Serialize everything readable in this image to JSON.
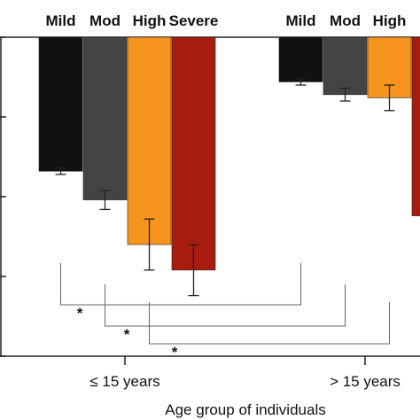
{
  "chart_data": {
    "type": "bar",
    "title": "",
    "xlabel": "Age group of individuals",
    "ylabel": "",
    "ylim": [
      0,
      1
    ],
    "y_ticks": [
      0,
      0.25,
      0.5,
      0.75,
      1
    ],
    "y_tick_labels": [
      "",
      "",
      "",
      "",
      ""
    ],
    "inverted": true,
    "groups": [
      "≤ 15 years",
      "> 15 years"
    ],
    "series": [
      {
        "name": "Mild",
        "color": "#111111",
        "values": [
          0.42,
          0.14
        ],
        "errors": [
          0.01,
          0.01
        ]
      },
      {
        "name": "Mod",
        "color": "#444444",
        "values": [
          0.51,
          0.18
        ],
        "errors": [
          0.03,
          0.02
        ]
      },
      {
        "name": "High",
        "color": "#f7941d",
        "values": [
          0.65,
          0.19
        ],
        "errors": [
          0.08,
          0.04
        ]
      },
      {
        "name": "Severe",
        "color": "#a81c10",
        "values": [
          0.73,
          0.56
        ],
        "errors": [
          0.08,
          0.0
        ]
      }
    ],
    "category_labels": [
      {
        "group": 0,
        "series": 0,
        "text": "Mild"
      },
      {
        "group": 0,
        "series": 1,
        "text": "Mod"
      },
      {
        "group": 0,
        "series": 2,
        "text": "High"
      },
      {
        "group": 0,
        "series": 3,
        "text": "Severe"
      },
      {
        "group": 1,
        "series": 0,
        "text": "Mild"
      },
      {
        "group": 1,
        "series": 1,
        "text": "Mod"
      },
      {
        "group": 1,
        "series": 2,
        "text": "High"
      },
      {
        "group": 1,
        "series": 3,
        "text": "S"
      }
    ],
    "significance": [
      {
        "from_series": 0,
        "to_series": 0,
        "label": "*"
      },
      {
        "from_series": 1,
        "to_series": 1,
        "label": "*"
      },
      {
        "from_series": 2,
        "to_series": 2,
        "label": "*"
      }
    ],
    "grid": false,
    "legend": "none"
  }
}
